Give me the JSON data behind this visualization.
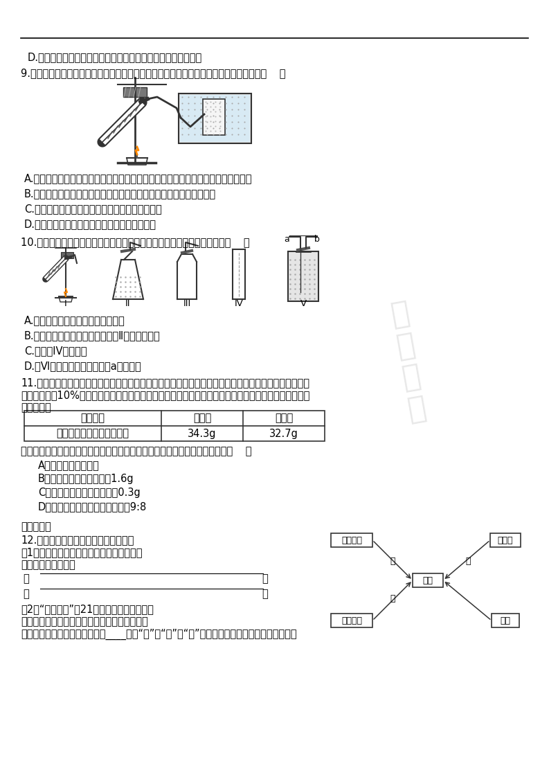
{
  "page_width": 7.93,
  "page_height": 11.22,
  "dpi": 100,
  "bg_color": "#ffffff",
  "text_color": "#000000",
  "line_color": "#000000",
  "line_D": "D.鐵丝在氧气中剧烈燃烧，火星四射，放出热量，生成黑色固体",
  "q9": "9.如图所示是实验室加热高锶酸鐶制取氧气的装置图，下列有关实验操作的分析错误的是（    ）",
  "q9_options": [
    "A.气密性检查：用手紧握试管，观察到水中的导气管口有气泡冒出，说明装置不漏气",
    "B.试管口略向下倒斜：防止试管壁上的水流入试管底部，导致试管炸裂",
    "C.加热：直接用酒精灯外焰对准药品所在位置加热",
    "D.停止加热：先把导管移出水面，再燄灭酒精灯"
  ],
  "q10": "10.某同学准备利用下图所示仪器及相关试剂制取氧气。下列说法正确的是（    ）",
  "q10_options": [
    "A.用高锶酸鐶制氧气时要加二氧化钆",
    "B.用过氧化氢溶液制取氧气时可用Ⅱ作为发生装置",
    "C.可选用IV收集氧气",
    "D.用Ⅵ收集氧气时，应从导管a通入氧气"
  ],
  "q11_line1": "11.（山东）某同学从定量角度研究双氧水制取氧气的过程，对原实验进行部分改进，增加了称量操作．具",
  "q11_line2": "体做法是：取10%的双氧水和少量的二氧化钆放入气体发生装置，并对反应前后混合物的质量进行称量，",
  "q11_line3": "记录如下：",
  "table_header": [
    "反应过程",
    "反应前",
    "反应后"
  ],
  "table_row": [
    "质量变化（不含容器质量）",
    "34.3g",
    "32.7g"
  ],
  "q11_conclusion": "若反应后，双氧水分解完全氧气全部逸出，该同学得出的结论中，不合理的是（    ）",
  "q11_options": [
    "A．反应速率逐渐加快",
    "B．最多得到氧气的质量为1.6g",
    "C．厂化剂二氧化钆的质量为0.3g",
    "D．反应得到水和氧气的质量比为9:8"
  ],
  "section2": "二、填空题",
  "q12_line1": "12.右图所示四种途径都可以得到氧气：",
  "q12_sub1a": "（1）写出实验室中通过甲、丙两种途径制取",
  "q12_sub1b": "氧气的化学方程式：",
  "q12_jia": "甲",
  "q12_bing": "丙",
  "q12_sub2a": "（2）“绿色化学”是21世纪化学科学发展的重",
  "q12_sub2b": "要方向之一。你认为在中学化学实验室中，甲、",
  "q12_sub2c": "乙、丙三种制取氧气的途径中，____（填“甲”、“乙”或“丙”）途更体现化学实验的绻色化追求。",
  "node_H2O2": "过氧化氢",
  "node_jia": "甲",
  "node_yi": "乙",
  "node_O2": "氧气",
  "node_bing": "丙",
  "node_KMnO4": "高锶酸鐶",
  "node_KClO3": "氯酸鐶",
  "node_air": "空气"
}
